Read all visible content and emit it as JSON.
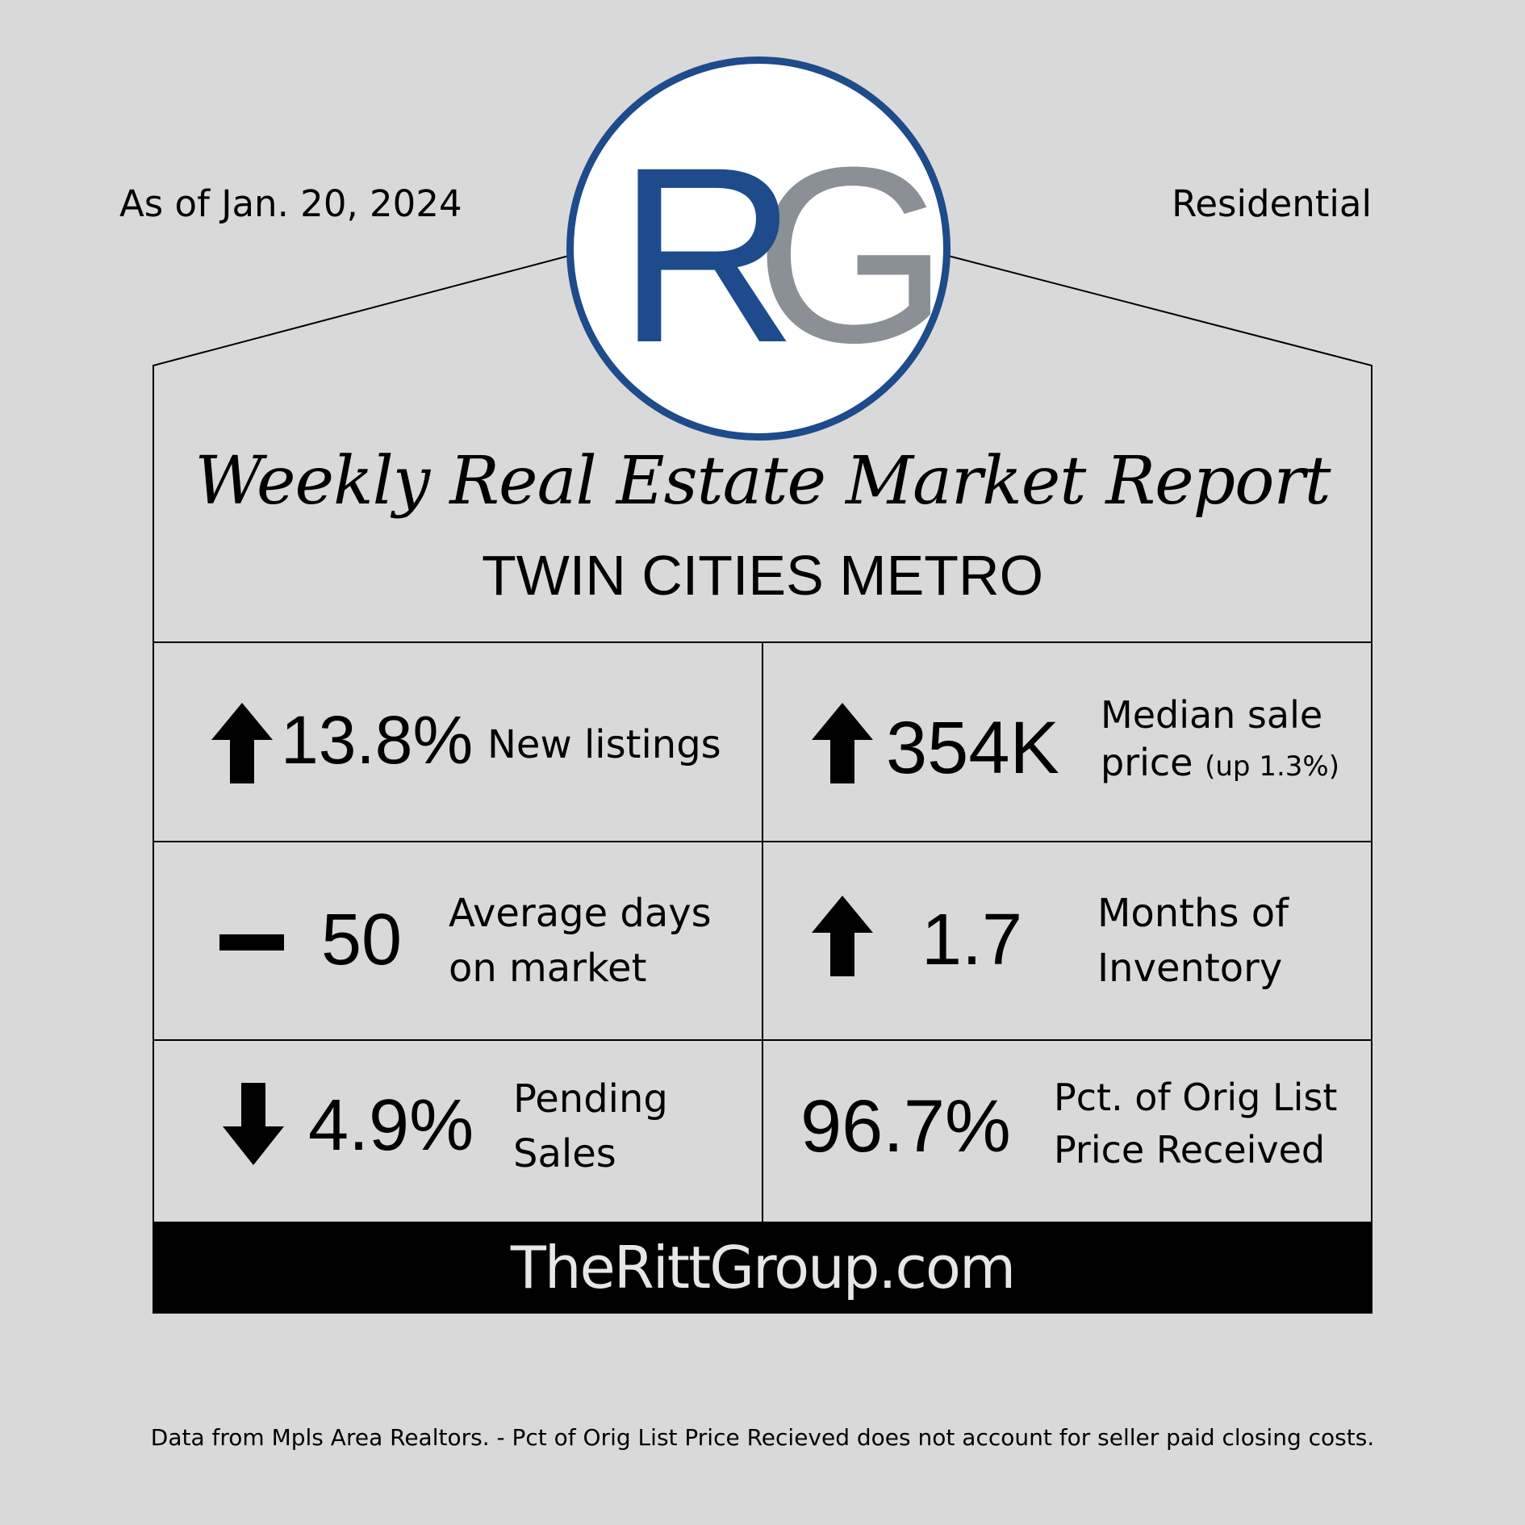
{
  "header": {
    "as_of": "As of Jan. 20, 2024",
    "category": "Residential"
  },
  "logo": {
    "letter_1": "R",
    "letter_2": "G",
    "ring_color": "#1d4b8b",
    "r_color": "#1d4b8b",
    "g_color": "#8a9096"
  },
  "title": "Weekly Real Estate Market Report",
  "subtitle": "TWIN CITIES METRO",
  "stats": {
    "new_listings": {
      "trend": "arrow-up",
      "value": "13.8%",
      "label": "New listings"
    },
    "median_sale_price": {
      "trend": "arrow-up",
      "value": "354K",
      "label_1": "Median sale",
      "label_2": "price",
      "note": "(up 1.3%)"
    },
    "avg_days_on_market": {
      "trend": "dash",
      "value": "50",
      "label_1": "Average days",
      "label_2": "on market"
    },
    "months_of_inventory": {
      "trend": "arrow-up",
      "value": "1.7",
      "label_1": "Months of",
      "label_2": "Inventory"
    },
    "pending_sales": {
      "trend": "arrow-down",
      "value": "4.9%",
      "label_1": "Pending",
      "label_2": "Sales"
    },
    "pct_orig_list_price": {
      "value": "96.7%",
      "label_1": "Pct. of Orig List",
      "label_2": "Price Received"
    }
  },
  "footer": {
    "website": "TheRittGroup.com",
    "disclaimer": "Data from Mpls Area Realtors. - Pct of Orig List Price Recieved does not account for seller paid closing costs."
  }
}
